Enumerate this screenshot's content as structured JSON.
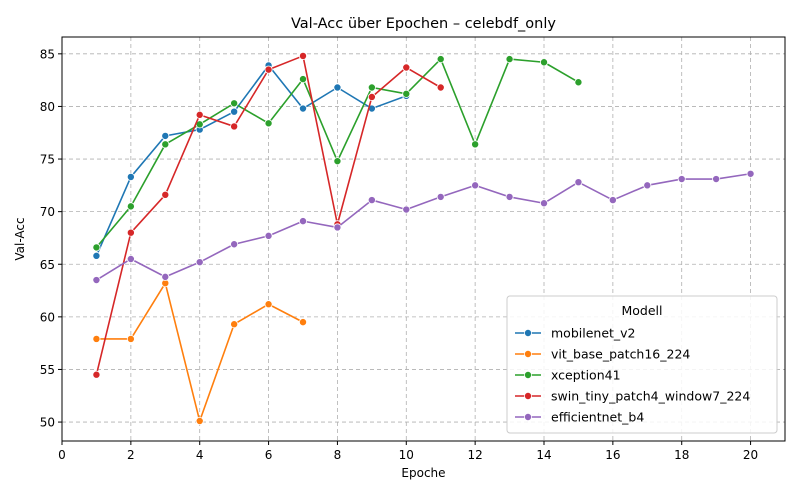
{
  "chart_data": {
    "type": "line",
    "title": "Val-Acc über Epochen – celebdf_only",
    "xlabel": "Epoche",
    "ylabel": "Val-Acc",
    "xlim": [
      0,
      21
    ],
    "ylim": [
      48.2,
      86.6
    ],
    "xticks": [
      0,
      2,
      4,
      6,
      8,
      10,
      12,
      14,
      16,
      18,
      20
    ],
    "yticks": [
      50,
      55,
      60,
      65,
      70,
      75,
      80,
      85
    ],
    "grid": true,
    "legend": {
      "title": "Modell",
      "position": "lower-right"
    },
    "series": [
      {
        "name": "mobilenet_v2",
        "color": "#1f77b4",
        "x": [
          1,
          2,
          3,
          4,
          5,
          6,
          7,
          8,
          9,
          10
        ],
        "y": [
          65.8,
          73.3,
          77.2,
          77.8,
          79.5,
          83.9,
          79.8,
          81.8,
          79.8,
          81.0
        ]
      },
      {
        "name": "vit_base_patch16_224",
        "color": "#ff7f0e",
        "x": [
          1,
          2,
          3,
          4,
          5,
          6,
          7
        ],
        "y": [
          57.9,
          57.9,
          63.2,
          50.1,
          59.3,
          61.2,
          59.5
        ]
      },
      {
        "name": "xception41",
        "color": "#2ca02c",
        "x": [
          1,
          2,
          3,
          4,
          5,
          6,
          7,
          8,
          9,
          10,
          11,
          12,
          13,
          14,
          15
        ],
        "y": [
          66.6,
          70.5,
          76.4,
          78.3,
          80.3,
          78.4,
          82.6,
          74.8,
          81.8,
          81.2,
          84.5,
          76.4,
          84.5,
          84.2,
          82.3
        ]
      },
      {
        "name": "swin_tiny_patch4_window7_224",
        "color": "#d62728",
        "x": [
          1,
          2,
          3,
          4,
          5,
          6,
          7,
          8,
          9,
          10,
          11
        ],
        "y": [
          54.5,
          68.0,
          71.6,
          79.2,
          78.1,
          83.5,
          84.8,
          68.8,
          80.9,
          83.7,
          81.8
        ]
      },
      {
        "name": "efficientnet_b4",
        "color": "#9467bd",
        "x": [
          1,
          2,
          3,
          4,
          5,
          6,
          7,
          8,
          9,
          10,
          11,
          12,
          13,
          14,
          15,
          16,
          17,
          18,
          19,
          20
        ],
        "y": [
          63.5,
          65.5,
          63.8,
          65.2,
          66.9,
          67.7,
          69.1,
          68.5,
          71.1,
          70.2,
          71.4,
          72.5,
          71.4,
          70.8,
          72.8,
          71.1,
          72.5,
          73.1,
          73.1,
          73.6
        ]
      }
    ]
  }
}
